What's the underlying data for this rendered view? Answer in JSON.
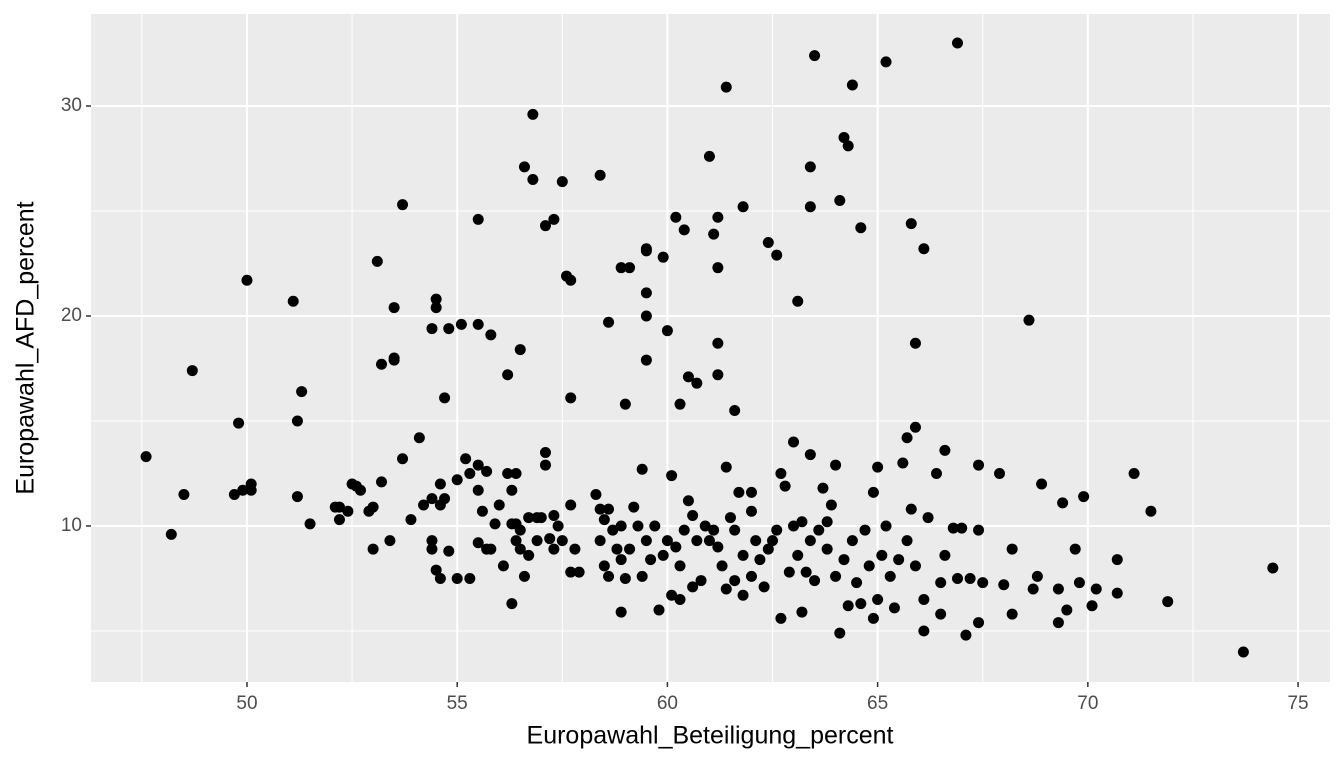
{
  "chart_data": {
    "type": "scatter",
    "x_label": "Europawahl_Beteiligung_percent",
    "y_label": "Europawahl_AFD_percent",
    "color": "#000000",
    "grid": true,
    "xlim": [
      46.29,
      75.76
    ],
    "ylim": [
      2.57,
      34.38
    ],
    "xticks": [
      50,
      55,
      60,
      65,
      70,
      75
    ],
    "yticks": [
      10,
      20,
      30
    ],
    "x": [
      47.6,
      48.2,
      48.5,
      48.7,
      49.8,
      49.7,
      49.9,
      50.1,
      50.1,
      50.0,
      51.1,
      51.2,
      51.2,
      51.3,
      51.5,
      53.1,
      53.5,
      53.7,
      53.2,
      53.5,
      53.5,
      53.7,
      54.1,
      54.5,
      54.5,
      54.4,
      54.8,
      55.1,
      55.5,
      55.5,
      55.8,
      54.7,
      56.2,
      56.5,
      56.6,
      56.8,
      56.8,
      57.1,
      57.3,
      57.5,
      57.6,
      57.7,
      57.7,
      57.1,
      57.1,
      58.4,
      58.6,
      58.9,
      59.1,
      59.0,
      59.5,
      59.5,
      59.5,
      59.5,
      59.5,
      59.9,
      60.0,
      60.2,
      60.4,
      60.3,
      60.5,
      60.7,
      61.0,
      61.1,
      61.2,
      61.2,
      61.2,
      61.2,
      61.4,
      61.6,
      61.8,
      62.4,
      62.6,
      63.1,
      63.4,
      63.4,
      63.5,
      64.1,
      64.2,
      64.3,
      64.4,
      64.6,
      65.2,
      65.8,
      65.9,
      66.1,
      66.9,
      68.6,
      63.0,
      63.4,
      64.0,
      65.7,
      65.9,
      65.6,
      66.6,
      73.7,
      74.4,
      52.1,
      52.2,
      52.2,
      52.4,
      52.5,
      52.6,
      52.7,
      52.9,
      53.0,
      53.0,
      53.2,
      53.4,
      53.9,
      54.2,
      54.4,
      54.4,
      54.5,
      54.6,
      54.4,
      54.6,
      54.6,
      54.7,
      54.8,
      55.0,
      55.0,
      55.2,
      55.3,
      55.3,
      55.5,
      55.5,
      55.5,
      55.6,
      55.7,
      55.7,
      55.8,
      55.9,
      56.0,
      56.1,
      56.2,
      56.3,
      56.3,
      56.3,
      56.4,
      56.4,
      56.4,
      56.5,
      56.5,
      56.6,
      56.7,
      56.7,
      56.9,
      56.9,
      57.0,
      57.2,
      57.3,
      57.3,
      57.4,
      57.5,
      57.7,
      57.7,
      57.8,
      57.9,
      58.3,
      58.4,
      58.4,
      58.5,
      58.5,
      58.6,
      58.7,
      58.6,
      58.8,
      58.9,
      58.9,
      58.9,
      59.0,
      59.1,
      59.2,
      59.3,
      59.4,
      59.4,
      59.5,
      59.6,
      59.7,
      59.8,
      59.9,
      60.0,
      60.1,
      60.1,
      60.2,
      60.3,
      60.3,
      60.4,
      60.5,
      60.6,
      60.6,
      60.7,
      60.8,
      60.9,
      61.0,
      61.1,
      61.2,
      61.3,
      61.4,
      61.4,
      61.5,
      61.6,
      61.6,
      61.7,
      61.8,
      61.8,
      62.0,
      62.0,
      62.0,
      62.1,
      62.2,
      62.3,
      62.4,
      62.5,
      62.6,
      62.7,
      62.7,
      62.8,
      62.9,
      63.0,
      63.1,
      63.2,
      63.2,
      63.3,
      63.4,
      63.5,
      63.6,
      63.7,
      63.8,
      63.8,
      63.9,
      64.0,
      64.1,
      64.2,
      64.3,
      64.4,
      64.5,
      64.6,
      64.7,
      64.8,
      64.9,
      64.9,
      65.0,
      65.0,
      65.1,
      65.2,
      65.3,
      65.4,
      65.5,
      65.7,
      65.8,
      65.9,
      66.1,
      66.1,
      66.2,
      66.4,
      66.5,
      66.5,
      66.6,
      66.8,
      66.9,
      67.0,
      67.1,
      67.2,
      67.4,
      67.4,
      67.4,
      67.5,
      67.9,
      68.0,
      68.2,
      68.2,
      68.9,
      68.8,
      68.7,
      69.3,
      69.3,
      69.4,
      69.5,
      69.7,
      69.8,
      69.9,
      70.1,
      70.2,
      70.7,
      70.7,
      71.1,
      71.5,
      71.9
    ],
    "values": [
      13.3,
      9.6,
      11.5,
      17.4,
      14.9,
      11.5,
      11.7,
      12.0,
      11.7,
      21.7,
      20.7,
      15.0,
      11.4,
      16.4,
      10.1,
      22.6,
      20.4,
      25.3,
      17.7,
      18.0,
      17.9,
      13.2,
      14.2,
      20.8,
      20.4,
      19.4,
      19.4,
      19.6,
      19.6,
      24.6,
      19.1,
      16.1,
      17.2,
      18.4,
      27.1,
      26.5,
      29.6,
      24.3,
      24.6,
      26.4,
      21.9,
      21.7,
      16.1,
      13.5,
      12.9,
      26.7,
      19.7,
      22.3,
      22.3,
      15.8,
      23.2,
      23.1,
      21.1,
      20.0,
      17.9,
      22.8,
      19.3,
      24.7,
      24.1,
      15.8,
      17.1,
      16.8,
      27.6,
      23.9,
      24.7,
      22.3,
      18.7,
      17.2,
      30.9,
      15.5,
      25.2,
      23.5,
      22.9,
      20.7,
      27.1,
      25.2,
      32.4,
      25.5,
      28.5,
      28.1,
      31.0,
      24.2,
      32.1,
      24.4,
      18.7,
      23.2,
      33.0,
      19.8,
      14.0,
      13.4,
      12.9,
      14.2,
      14.7,
      13.0,
      13.6,
      4.0,
      8.0,
      10.9,
      10.3,
      10.9,
      10.7,
      12.0,
      11.9,
      11.7,
      10.7,
      10.9,
      8.9,
      12.1,
      9.3,
      10.3,
      11.0,
      11.3,
      9.3,
      7.9,
      7.5,
      8.9,
      12.0,
      11.0,
      11.3,
      8.8,
      12.2,
      7.5,
      13.2,
      7.5,
      12.5,
      12.9,
      9.2,
      11.7,
      10.7,
      8.9,
      12.6,
      8.9,
      10.1,
      11.0,
      8.1,
      12.5,
      11.7,
      6.3,
      10.1,
      12.5,
      9.3,
      10.1,
      9.8,
      8.9,
      7.6,
      8.6,
      10.4,
      9.3,
      10.4,
      10.4,
      9.4,
      8.9,
      10.5,
      10.0,
      9.3,
      7.8,
      11.0,
      8.9,
      7.8,
      11.5,
      10.8,
      9.3,
      10.3,
      8.1,
      10.8,
      9.8,
      7.6,
      8.9,
      10.0,
      5.9,
      8.4,
      7.5,
      8.9,
      10.9,
      10.0,
      7.6,
      12.7,
      9.3,
      8.4,
      10.0,
      6.0,
      8.6,
      9.3,
      12.4,
      6.7,
      9.0,
      6.5,
      8.1,
      9.8,
      11.2,
      10.5,
      7.1,
      9.3,
      7.4,
      10.0,
      9.3,
      9.8,
      9.0,
      8.1,
      12.8,
      7.0,
      10.4,
      7.4,
      9.8,
      11.6,
      8.6,
      6.7,
      11.6,
      10.7,
      7.6,
      9.3,
      8.4,
      7.1,
      8.9,
      9.3,
      9.8,
      12.5,
      5.6,
      11.9,
      7.8,
      10.0,
      8.6,
      10.2,
      5.9,
      7.8,
      9.3,
      7.4,
      9.8,
      11.8,
      10.2,
      8.9,
      11.0,
      7.6,
      4.9,
      8.4,
      6.2,
      9.3,
      7.3,
      6.3,
      9.8,
      8.1,
      11.6,
      5.6,
      6.5,
      12.8,
      8.6,
      10.0,
      7.6,
      6.1,
      8.4,
      9.3,
      10.8,
      8.1,
      5.0,
      6.5,
      10.4,
      12.5,
      7.3,
      5.8,
      8.6,
      9.9,
      7.5,
      9.9,
      4.8,
      7.5,
      12.9,
      9.8,
      5.4,
      7.3,
      12.5,
      7.2,
      8.9,
      5.8,
      12.0,
      7.6,
      7.0,
      5.4,
      7.0,
      11.1,
      6.0,
      8.9,
      7.3,
      11.4,
      6.2,
      7.0,
      8.4,
      6.8,
      12.5,
      10.7,
      6.4
    ]
  }
}
